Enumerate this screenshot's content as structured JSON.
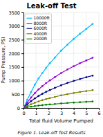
{
  "chart_data": {
    "type": "line",
    "title": "Leak-off Test",
    "x_label": "Total fluid Volume Pumped",
    "y_label": "Pump Pressure, PSI",
    "annotations": [
      "Figure 1. Leak-off Test Results"
    ],
    "x": [
      0,
      0.3,
      0.6,
      0.9,
      1.2,
      1.5,
      1.8,
      2.1,
      2.5,
      3.0,
      3.5,
      4.0,
      4.5,
      5.0,
      5.5
    ],
    "xlim": [
      0,
      6
    ],
    "ylim": [
      0,
      3500
    ],
    "xticks": [
      0,
      1,
      2,
      3,
      4,
      5,
      6
    ],
    "yticks": [
      0,
      500,
      1000,
      1500,
      2000,
      2500,
      3000,
      3500
    ],
    "grid": true,
    "legend": "upper left",
    "series": [
      {
        "name": "10000ft",
        "color": "#00bfff",
        "marker": "point",
        "line_style": "solid",
        "values": [
          0,
          300,
          580,
          850,
          1080,
          1280,
          1470,
          1640,
          1850,
          2100,
          2320,
          2530,
          2720,
          2900,
          3080
        ]
      },
      {
        "name": "8000ft",
        "color": "#9400d3",
        "marker": "point",
        "line_style": "solid",
        "values": [
          0,
          200,
          380,
          540,
          680,
          800,
          910,
          1010,
          1130,
          1280,
          1410,
          1530,
          1640,
          1740,
          1840
        ]
      },
      {
        "name": "6000ft",
        "color": "#00008b",
        "marker": "point",
        "line_style": "solid",
        "values": [
          0,
          130,
          250,
          350,
          440,
          520,
          590,
          655,
          735,
          830,
          915,
          990,
          1060,
          1125,
          1185
        ]
      },
      {
        "name": "4000ft",
        "color": "#808000",
        "marker": "point",
        "line_style": "solid",
        "values": [
          0,
          70,
          135,
          190,
          240,
          285,
          325,
          360,
          405,
          460,
          505,
          547,
          585,
          620,
          653
        ]
      },
      {
        "name": "2000ft",
        "color": "#008000",
        "marker": "point",
        "line_style": "solid",
        "values": [
          0,
          25,
          48,
          68,
          86,
          102,
          116,
          129,
          145,
          165,
          182,
          197,
          211,
          224,
          236
        ]
      }
    ]
  }
}
